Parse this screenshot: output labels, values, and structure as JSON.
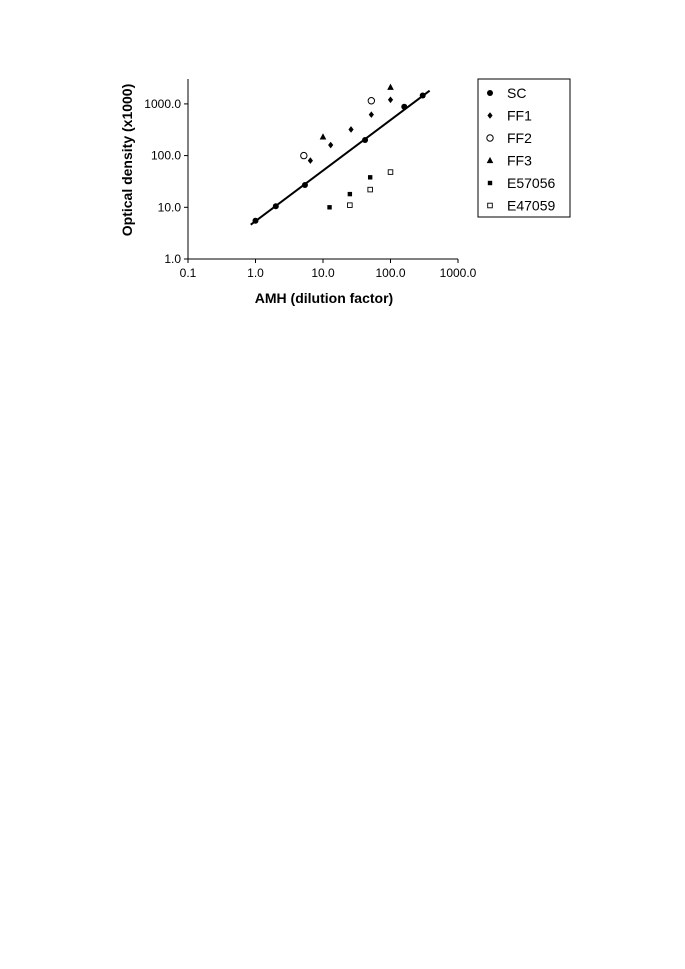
{
  "chart_data": {
    "type": "scatter",
    "title": "",
    "xlabel": "AMH (dilution factor)",
    "ylabel": "Optical density (x1000)",
    "xscale": "log",
    "yscale": "log",
    "xlim": [
      0.1,
      1000.0
    ],
    "ylim": [
      1.0,
      3000.0
    ],
    "x_ticks": [
      "0.1",
      "1.0",
      "10.0",
      "100.0",
      "1000.0"
    ],
    "y_ticks": [
      "1.0",
      "10.0",
      "100.0",
      "1000.0"
    ],
    "x_tick_values": [
      0.1,
      1,
      10,
      100,
      1000
    ],
    "y_tick_values": [
      1,
      10,
      100,
      1000
    ],
    "grid": false,
    "legend_position": "right",
    "series": [
      {
        "name": "SC",
        "marker": "filled-circle",
        "x": [
          1.0,
          2.0,
          5.4,
          42,
          160,
          300
        ],
        "y": [
          5.5,
          10.5,
          27,
          200,
          880,
          1450
        ]
      },
      {
        "name": "FF1",
        "marker": "filled-diamond",
        "x": [
          6.5,
          13,
          26,
          52,
          100
        ],
        "y": [
          80,
          160,
          320,
          620,
          1200
        ]
      },
      {
        "name": "FF2",
        "marker": "open-circle",
        "x": [
          5.2,
          52
        ],
        "y": [
          100,
          1150
        ]
      },
      {
        "name": "FF3",
        "marker": "filled-triangle",
        "x": [
          10,
          100
        ],
        "y": [
          230,
          2100
        ]
      },
      {
        "name": "E57056",
        "marker": "filled-square",
        "x": [
          12.5,
          25,
          50
        ],
        "y": [
          10,
          18,
          38
        ]
      },
      {
        "name": "E47059",
        "marker": "open-square",
        "x": [
          25,
          50,
          100
        ],
        "y": [
          11,
          22,
          48
        ]
      }
    ],
    "fit_line": {
      "series": "SC",
      "x": [
        0.85,
        380
      ],
      "y": [
        4.6,
        1800
      ]
    }
  }
}
